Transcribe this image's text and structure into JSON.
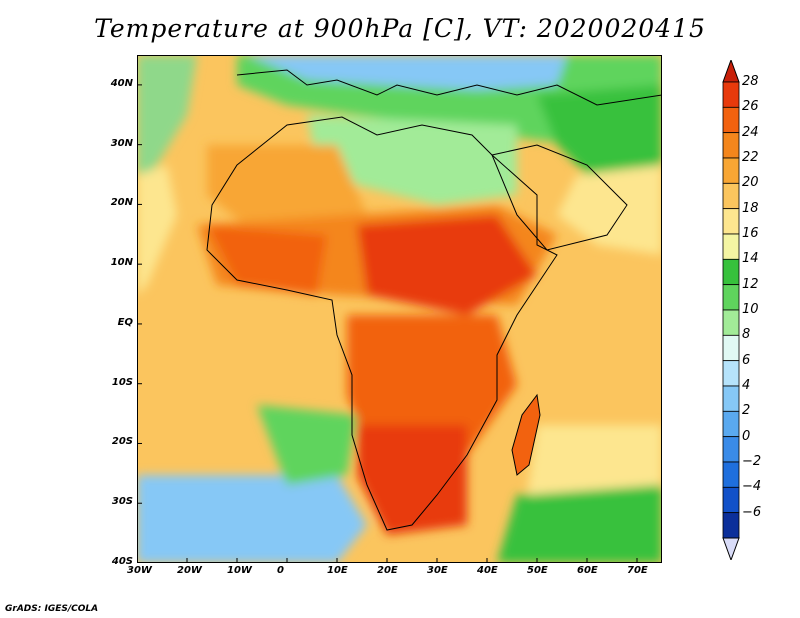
{
  "title": "Temperature at 900hPa [C], VT: 2020020415",
  "credit": "GrADS: IGES/COLA",
  "map": {
    "lon_range": [
      -30,
      75
    ],
    "lat_range": [
      -40,
      45
    ],
    "lat_ticks": [
      {
        "value": 40,
        "label": "40N"
      },
      {
        "value": 30,
        "label": "30N"
      },
      {
        "value": 20,
        "label": "20N"
      },
      {
        "value": 10,
        "label": "10N"
      },
      {
        "value": 0,
        "label": "EQ"
      },
      {
        "value": -10,
        "label": "10S"
      },
      {
        "value": -20,
        "label": "20S"
      },
      {
        "value": -30,
        "label": "30S"
      },
      {
        "value": -40,
        "label": "40S"
      }
    ],
    "lon_ticks": [
      {
        "value": -30,
        "label": "30W"
      },
      {
        "value": -20,
        "label": "20W"
      },
      {
        "value": -10,
        "label": "10W"
      },
      {
        "value": 0,
        "label": "0"
      },
      {
        "value": 10,
        "label": "10E"
      },
      {
        "value": 20,
        "label": "20E"
      },
      {
        "value": 30,
        "label": "30E"
      },
      {
        "value": 40,
        "label": "40E"
      },
      {
        "value": 50,
        "label": "50E"
      },
      {
        "value": 60,
        "label": "60E"
      },
      {
        "value": 70,
        "label": "70E"
      }
    ]
  },
  "colorbar": {
    "levels": [
      {
        "label": "28",
        "color": "#e83a0c"
      },
      {
        "label": "26",
        "color": "#f2620f"
      },
      {
        "label": "24",
        "color": "#f4861c"
      },
      {
        "label": "22",
        "color": "#f8a634"
      },
      {
        "label": "20",
        "color": "#fbc55e"
      },
      {
        "label": "18",
        "color": "#fde68f"
      },
      {
        "label": "16",
        "color": "#f4f5a3"
      },
      {
        "label": "14",
        "color": "#37c13c"
      },
      {
        "label": "12",
        "color": "#5fd45d"
      },
      {
        "label": "10",
        "color": "#a2eb98"
      },
      {
        "label": "8",
        "color": "#e1f9f4"
      },
      {
        "label": "6",
        "color": "#b6e3fb"
      },
      {
        "label": "4",
        "color": "#86c8f6"
      },
      {
        "label": "2",
        "color": "#5aa9ef"
      },
      {
        "label": "0",
        "color": "#3a8be8"
      },
      {
        "label": "−2",
        "color": "#1f6fdd"
      },
      {
        "label": "−4",
        "color": "#1251c9"
      },
      {
        "label": "−6",
        "color": "#0b2f9a"
      }
    ],
    "over_color": "#c8200a",
    "under_color": "#d9dcf8"
  }
}
